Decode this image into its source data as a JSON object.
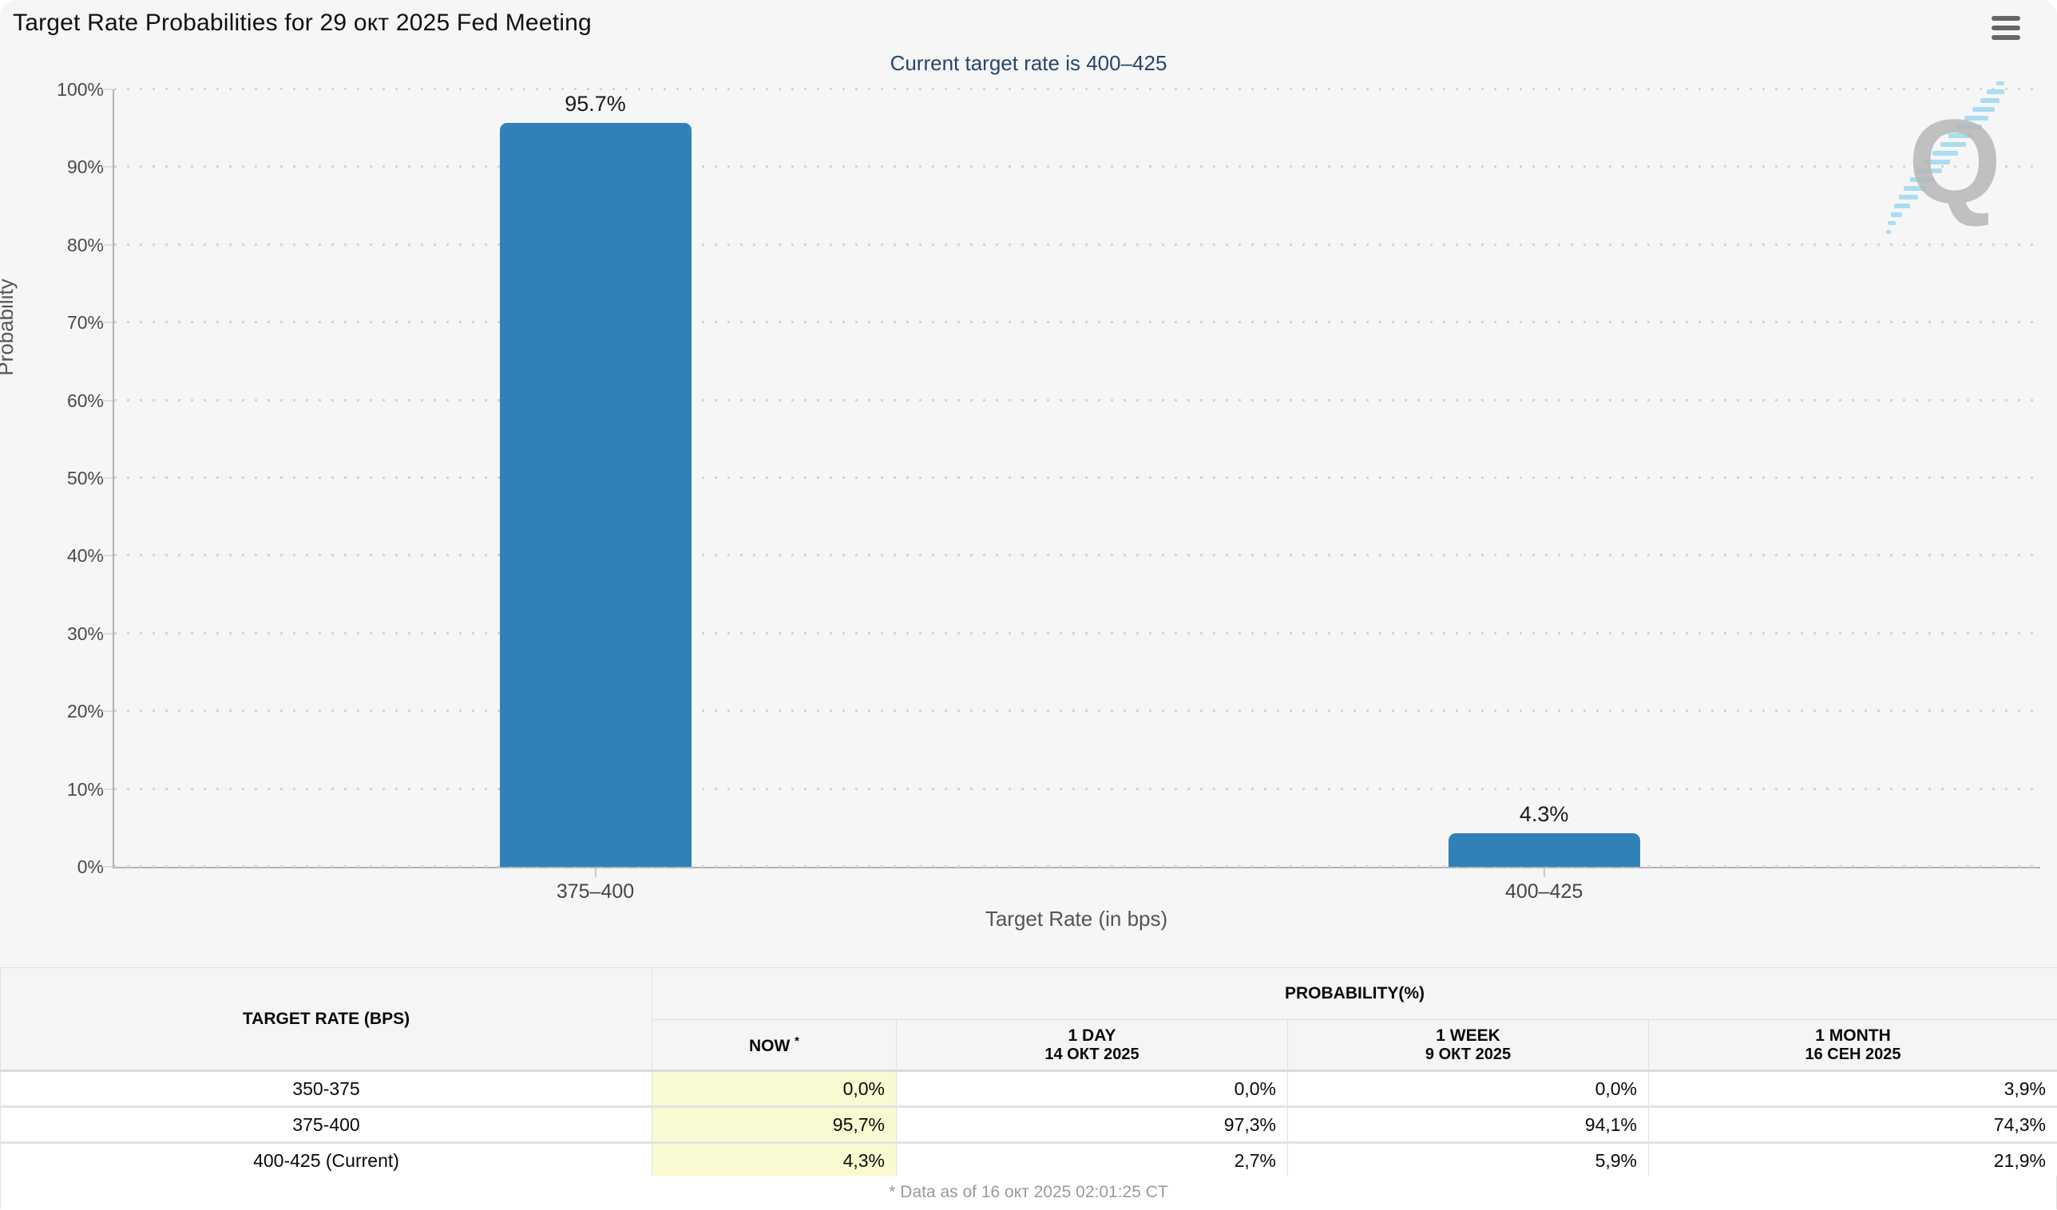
{
  "header": {
    "title": "Target Rate Probabilities for 29 окт 2025 Fed Meeting",
    "menu_icon": "hamburger-menu"
  },
  "chart_data": {
    "type": "bar",
    "title": "Target Rate Probabilities for 29 окт 2025 Fed Meeting",
    "subtitle": "Current target rate is 400–425",
    "categories": [
      "375–400",
      "400–425"
    ],
    "values": [
      95.7,
      4.3
    ],
    "value_labels": [
      "95.7%",
      "4.3%"
    ],
    "xlabel": "Target Rate (in bps)",
    "ylabel": "Probability",
    "ylim": [
      0,
      100
    ],
    "yticks": [
      "0%",
      "10%",
      "20%",
      "30%",
      "40%",
      "50%",
      "60%",
      "70%",
      "80%",
      "90%",
      "100%"
    ],
    "grid": "dotted-horizontal",
    "legend": "none",
    "bar_color": "#3181b9",
    "bar_centers_pct": [
      25.0,
      74.3
    ]
  },
  "watermark": {
    "letter": "Q"
  },
  "table": {
    "col_headers": {
      "target_rate": "TARGET RATE (BPS)",
      "probability": "PROBABILITY(%)",
      "now": "NOW",
      "now_asterisk": "*",
      "one_day": "1 DAY",
      "one_day_date": "14 ОКТ 2025",
      "one_week": "1 WEEK",
      "one_week_date": "9 ОКТ 2025",
      "one_month": "1 MONTH",
      "one_month_date": "16 СЕН 2025"
    },
    "rows": [
      {
        "rate": "350-375",
        "now": "0,0%",
        "day": "0,0%",
        "week": "0,0%",
        "month": "3,9%"
      },
      {
        "rate": "375-400",
        "now": "95,7%",
        "day": "97,3%",
        "week": "94,1%",
        "month": "74,3%"
      },
      {
        "rate": "400-425 (Current)",
        "now": "4,3%",
        "day": "2,7%",
        "week": "5,9%",
        "month": "21,9%"
      }
    ]
  },
  "footer": {
    "note": "* Data as of 16 окт 2025 02:01:25 CT"
  },
  "colors": {
    "card_background": "#f6f6f6",
    "bar": "#3181b9",
    "subtitle": "#26466d",
    "now_cell_background": "#fafad2",
    "axis": "#b3b3b3",
    "grid_dots": "#d4d4d4"
  }
}
